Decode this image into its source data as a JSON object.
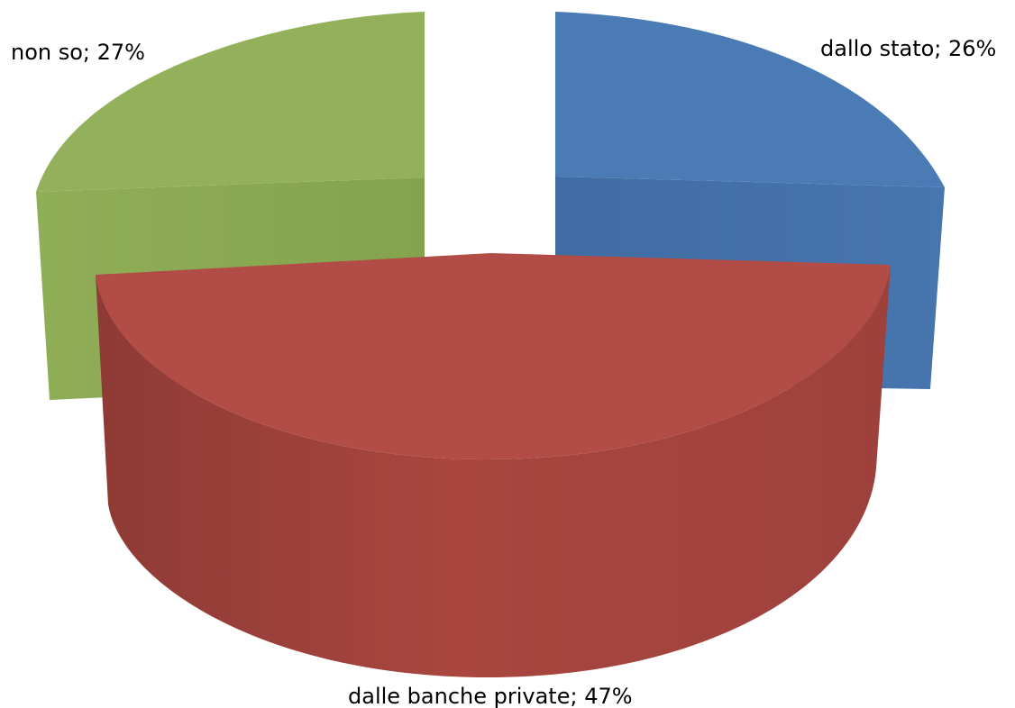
{
  "chart_data": {
    "type": "pie",
    "style": "3d-exploded",
    "title": "",
    "slices": [
      {
        "category": "dallo stato",
        "value": 26,
        "label": "dallo stato; 26%",
        "color": "#4a7bb4",
        "side_color": "#4170a5"
      },
      {
        "category": "dalle banche private",
        "value": 47,
        "label": "dalle banche private; 47%",
        "color": "#b24c46",
        "side_color": "#a34542"
      },
      {
        "category": "non so",
        "value": 27,
        "label": "non so; 27%",
        "color": "#93b15a",
        "side_color": "#86a550"
      }
    ]
  }
}
